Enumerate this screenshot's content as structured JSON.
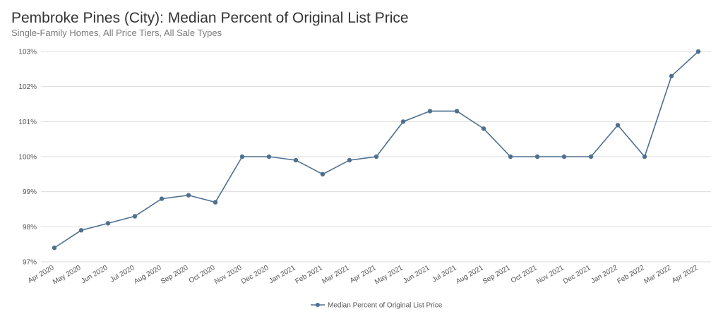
{
  "chart_data": {
    "type": "line",
    "title": "Pembroke Pines (City): Median Percent of Original List Price",
    "subtitle": "Single-Family Homes, All Price Tiers, All Sale Types",
    "xlabel": "",
    "ylabel": "",
    "ylim": [
      97,
      103
    ],
    "yticks": [
      97,
      98,
      99,
      100,
      101,
      102,
      103
    ],
    "ytick_labels": [
      "97%",
      "98%",
      "99%",
      "100%",
      "101%",
      "102%",
      "103%"
    ],
    "grid": true,
    "legend_position": "bottom-center",
    "categories": [
      "Apr 2020",
      "May 2020",
      "Jun 2020",
      "Jul 2020",
      "Aug 2020",
      "Sep 2020",
      "Oct 2020",
      "Nov 2020",
      "Dec 2020",
      "Jan 2021",
      "Feb 2021",
      "Mar 2021",
      "Apr 2021",
      "May 2021",
      "Jun 2021",
      "Jul 2021",
      "Aug 2021",
      "Sep 2021",
      "Oct 2021",
      "Nov 2021",
      "Dec 2021",
      "Jan 2022",
      "Feb 2022",
      "Mar 2022",
      "Apr 2022"
    ],
    "series": [
      {
        "name": "Median Percent of Original List Price",
        "color": "#4e7090",
        "values": [
          97.4,
          97.9,
          98.1,
          98.3,
          98.8,
          98.9,
          98.7,
          100.0,
          100.0,
          99.9,
          99.5,
          99.9,
          100.0,
          101.0,
          101.3,
          101.3,
          100.8,
          100.0,
          100.0,
          100.0,
          100.0,
          100.9,
          100.0,
          102.3,
          103.0
        ]
      }
    ]
  }
}
